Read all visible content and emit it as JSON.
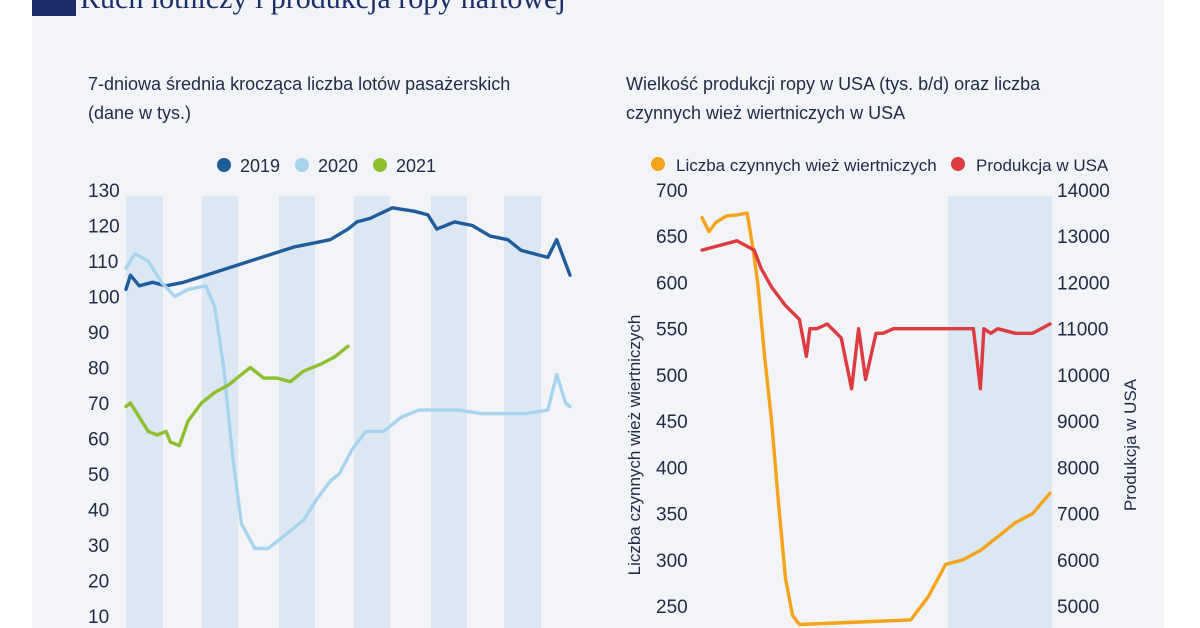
{
  "header": {
    "title": "Ruch lotniczy i produkcja ropy naftowej"
  },
  "colors": {
    "navy": "#1c2f6b",
    "y2019": "#1f5c9c",
    "y2020": "#a6d4ee",
    "y2021": "#8dbf2f",
    "rigs": "#f5a31a",
    "production": "#dc3b3f",
    "band": "#dbe8f4"
  },
  "chart_data": [
    {
      "type": "line",
      "title": "7-dniowa średnia krocząca liczba lotów pasażerskich (dane w tys.)",
      "ylim": [
        10,
        130
      ],
      "yticks": [
        130,
        120,
        110,
        100,
        90,
        80,
        70,
        60,
        50,
        40,
        30,
        20,
        10
      ],
      "grid": false,
      "legend": "top",
      "series": [
        {
          "name": "2019",
          "color": "#1f5c9c",
          "x": [
            0,
            0.01,
            0.03,
            0.06,
            0.09,
            0.13,
            0.18,
            0.23,
            0.28,
            0.33,
            0.38,
            0.42,
            0.46,
            0.5,
            0.52,
            0.55,
            0.6,
            0.65,
            0.68,
            0.7,
            0.74,
            0.78,
            0.82,
            0.86,
            0.89,
            0.92,
            0.95,
            0.97,
            1.0
          ],
          "values": [
            102,
            106,
            103,
            104,
            103,
            104,
            106,
            108,
            110,
            112,
            114,
            115,
            116,
            119,
            121,
            122,
            125,
            124,
            123,
            119,
            121,
            120,
            117,
            116,
            113,
            112,
            111,
            116,
            106
          ]
        },
        {
          "name": "2020",
          "color": "#a6d4ee",
          "x": [
            0,
            0.02,
            0.05,
            0.08,
            0.11,
            0.14,
            0.18,
            0.2,
            0.22,
            0.24,
            0.26,
            0.29,
            0.32,
            0.35,
            0.38,
            0.4,
            0.43,
            0.46,
            0.48,
            0.51,
            0.54,
            0.58,
            0.62,
            0.66,
            0.7,
            0.75,
            0.8,
            0.85,
            0.9,
            0.95,
            0.97,
            0.99,
            1.0
          ],
          "values": [
            108,
            112,
            110,
            104,
            100,
            102,
            103,
            97,
            80,
            55,
            36,
            29,
            29,
            32,
            35,
            37,
            43,
            48,
            50,
            57,
            62,
            62,
            66,
            68,
            68,
            68,
            67,
            67,
            67,
            68,
            78,
            70,
            69
          ]
        },
        {
          "name": "2021",
          "color": "#8dbf2f",
          "x": [
            0,
            0.01,
            0.03,
            0.05,
            0.07,
            0.09,
            0.1,
            0.12,
            0.14,
            0.17,
            0.2,
            0.23,
            0.26,
            0.28,
            0.31,
            0.34,
            0.37,
            0.4,
            0.44,
            0.47,
            0.5
          ],
          "values": [
            69,
            70,
            66,
            62,
            61,
            62,
            59,
            58,
            65,
            70,
            73,
            75,
            78,
            80,
            77,
            77,
            76,
            79,
            81,
            83,
            86
          ]
        }
      ]
    },
    {
      "type": "line",
      "title": "Wielkość produkcji ropy w USA (tys. b/d) oraz liczba czynnych wież wiertniczych w USA",
      "ylabel": "Liczba czynnych wież wiertniczych",
      "ylabel_right": "Produkcja w USA",
      "ylim": [
        250,
        700
      ],
      "yticks": [
        700,
        650,
        600,
        550,
        500,
        450,
        400,
        350,
        300,
        250
      ],
      "ylim_right": [
        5000,
        14000
      ],
      "yticks_right": [
        14000,
        13000,
        12000,
        11000,
        10000,
        9000,
        8000,
        7000,
        6000,
        5000
      ],
      "grid": false,
      "legend": "top",
      "series": [
        {
          "name": "Liczba czynnych wież wiertniczych",
          "color": "#f5a31a",
          "axis": "left",
          "x": [
            0,
            0.02,
            0.04,
            0.07,
            0.1,
            0.13,
            0.145,
            0.16,
            0.18,
            0.2,
            0.22,
            0.24,
            0.26,
            0.28,
            0.6,
            0.65,
            0.7,
            0.75,
            0.8,
            0.85,
            0.9,
            0.95,
            1.0
          ],
          "values": [
            670,
            655,
            665,
            672,
            673,
            675,
            640,
            600,
            520,
            450,
            360,
            280,
            240,
            230,
            235,
            260,
            295,
            300,
            310,
            325,
            340,
            350,
            372
          ]
        },
        {
          "name": "Produkcja w USA",
          "color": "#dc3b3f",
          "axis": "right",
          "x": [
            0,
            0.05,
            0.1,
            0.15,
            0.17,
            0.2,
            0.24,
            0.28,
            0.3,
            0.31,
            0.33,
            0.36,
            0.4,
            0.43,
            0.45,
            0.47,
            0.5,
            0.52,
            0.55,
            0.58,
            0.6,
            0.65,
            0.72,
            0.78,
            0.8,
            0.81,
            0.83,
            0.85,
            0.9,
            0.95,
            1.0
          ],
          "values": [
            12700,
            12800,
            12900,
            12700,
            12300,
            11900,
            11500,
            11200,
            10400,
            11000,
            11000,
            11100,
            10800,
            9700,
            11000,
            9900,
            10900,
            10900,
            11000,
            11000,
            11000,
            11000,
            11000,
            11000,
            9700,
            11000,
            10900,
            11000,
            10900,
            10900,
            11100
          ]
        }
      ]
    }
  ]
}
